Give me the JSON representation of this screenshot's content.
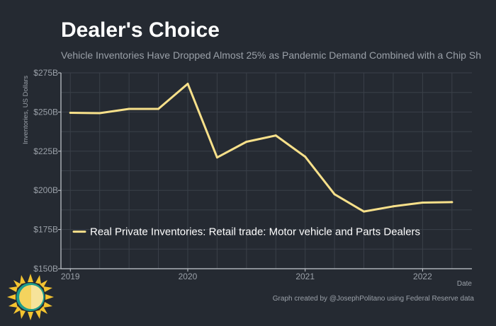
{
  "title": "Dealer's Choice",
  "subtitle": "Vehicle Inventories Have Dropped Almost 25% as Pandemic Demand Combined with a Chip Sh",
  "footer": "Graph created by @JosephPolitano using Federal Reserve data",
  "colors": {
    "background": "#252a32",
    "grid": "#3a4049",
    "axis": "#c8ccd2",
    "text": "#9aa0a8",
    "line": "#f7e08a",
    "legend_text": "#ffffff"
  },
  "chart_data": {
    "type": "line",
    "title": "Dealer's Choice",
    "xlabel": "Date",
    "ylabel": "Inventories, US Dollars",
    "xlim": [
      2018.92,
      2022.42
    ],
    "ylim": [
      150,
      275
    ],
    "y_ticks": [
      150,
      175,
      200,
      225,
      250,
      275
    ],
    "y_tick_labels": [
      "$150B",
      "$175B",
      "$200B",
      "$225B",
      "$250B",
      "$275B"
    ],
    "x_ticks": [
      2019,
      2020,
      2021,
      2022
    ],
    "x_tick_labels": [
      "2019",
      "2020",
      "2021",
      "2022"
    ],
    "grid": true,
    "legend_position": "lower-left",
    "series": [
      {
        "name": "Real Private Inventories: Retail trade: Motor vehicle and Parts Dealers",
        "color": "#f7e08a",
        "x": [
          2019.0,
          2019.25,
          2019.5,
          2019.75,
          2020.0,
          2020.25,
          2020.5,
          2020.75,
          2021.0,
          2021.25,
          2021.5,
          2021.75,
          2022.0,
          2022.25
        ],
        "y": [
          249.5,
          249.3,
          252.0,
          252.0,
          268.0,
          221.0,
          231.0,
          235.0,
          221.5,
          197.5,
          186.5,
          189.8,
          192.2,
          192.5
        ]
      }
    ]
  }
}
